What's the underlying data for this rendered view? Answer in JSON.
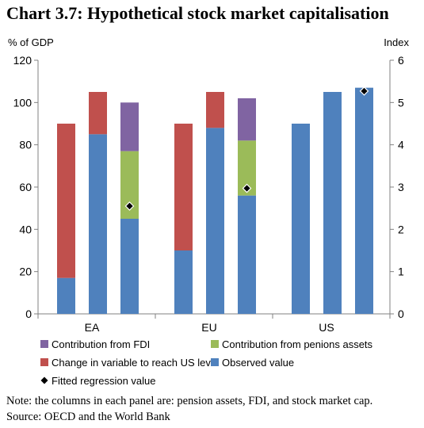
{
  "chart_data": {
    "type": "bar",
    "title": "Chart 3.7: Hypothetical stock market capitalisation",
    "ylabel_left": "% of GDP",
    "ylabel_right": "Index",
    "ylim_left": [
      0,
      120
    ],
    "ylim_right": [
      0,
      6
    ],
    "yticks_left": [
      "0",
      "20",
      "40",
      "60",
      "80",
      "100",
      "120"
    ],
    "yticks_right": [
      "0",
      "1",
      "2",
      "3",
      "4",
      "5",
      "6"
    ],
    "panels": [
      "EA",
      "EU",
      "US"
    ],
    "columns_per_panel": [
      "pension assets",
      "FDI",
      "stock market cap"
    ],
    "colors": {
      "observed": "#4f81bd",
      "change": "#c0504d",
      "pension": "#9bbb59",
      "fdi": "#8064a2",
      "marker": "#000000"
    },
    "stacks": [
      {
        "panel": "EA",
        "column": "pension assets",
        "observed": 17,
        "pension": 0,
        "fdi": 0,
        "change": 73
      },
      {
        "panel": "EA",
        "column": "FDI",
        "observed": 85,
        "pension": 0,
        "fdi": 0,
        "change": 20
      },
      {
        "panel": "EA",
        "column": "stock market cap",
        "observed": 45,
        "pension": 32,
        "fdi": 23,
        "change": 0
      },
      {
        "panel": "EU",
        "column": "pension assets",
        "observed": 30,
        "pension": 0,
        "fdi": 0,
        "change": 60
      },
      {
        "panel": "EU",
        "column": "FDI",
        "observed": 88,
        "pension": 0,
        "fdi": 0,
        "change": 17
      },
      {
        "panel": "EU",
        "column": "stock market cap",
        "observed": 56,
        "pension": 26,
        "fdi": 20,
        "change": 0
      },
      {
        "panel": "US",
        "column": "pension assets",
        "observed": 90,
        "pension": 0,
        "fdi": 0,
        "change": 0
      },
      {
        "panel": "US",
        "column": "FDI",
        "observed": 105,
        "pension": 0,
        "fdi": 0,
        "change": 0
      },
      {
        "panel": "US",
        "column": "stock market cap",
        "observed": 107,
        "pension": 0,
        "fdi": 0,
        "change": 0
      }
    ],
    "fitted_regression_index": [
      {
        "panel": "EA",
        "value": 2.55
      },
      {
        "panel": "EU",
        "value": 2.97
      },
      {
        "panel": "US",
        "value": 5.27
      }
    ],
    "legend": [
      {
        "key": "fdi",
        "label": "Contribution from FDI",
        "shape": "square"
      },
      {
        "key": "pension",
        "label": "Contribution from penions assets",
        "shape": "square"
      },
      {
        "key": "change",
        "label": "Change in variable to reach US level",
        "shape": "square"
      },
      {
        "key": "observed",
        "label": "Observed value",
        "shape": "square"
      },
      {
        "key": "marker",
        "label": "Fitted regression value",
        "shape": "diamond"
      }
    ],
    "legend_placement": "bottom",
    "grid": false
  },
  "notes": {
    "note": "Note: the columns in each panel are: pension assets, FDI, and stock market cap.",
    "source": "Source: OECD and the World Bank"
  }
}
